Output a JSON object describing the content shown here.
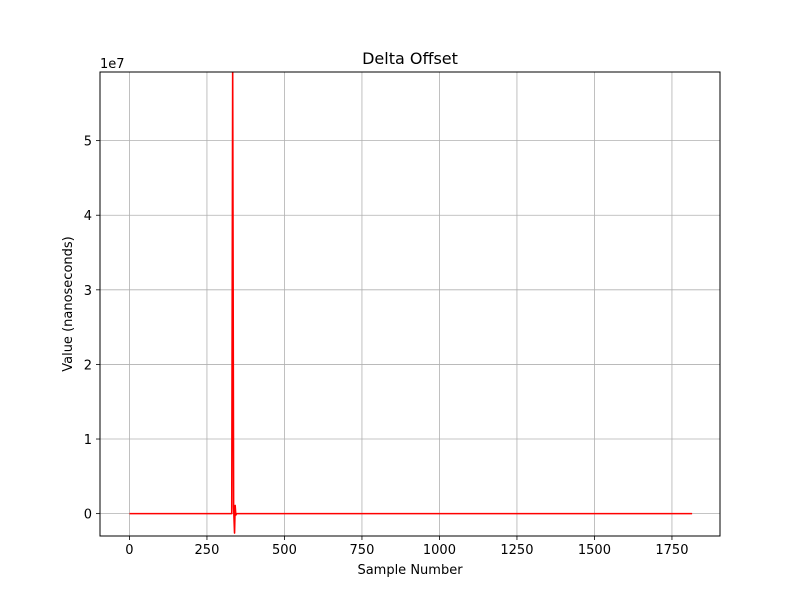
{
  "chart_data": {
    "type": "line",
    "title": "Delta Offset",
    "xlabel": "Sample Number",
    "ylabel": "Value (nanoseconds)",
    "y_offset_label": "1e7",
    "xlim": [
      -95,
      1905
    ],
    "ylim": [
      -3000000,
      59200000
    ],
    "x_ticks": [
      0,
      250,
      500,
      750,
      1000,
      1250,
      1500,
      1750
    ],
    "x_tick_labels": [
      "0",
      "250",
      "500",
      "750",
      "1000",
      "1250",
      "1500",
      "1750"
    ],
    "y_ticks": [
      0,
      10000000,
      20000000,
      30000000,
      40000000,
      50000000
    ],
    "y_tick_labels": [
      "0",
      "1",
      "2",
      "3",
      "4",
      "5"
    ],
    "grid": true,
    "series": [
      {
        "color": "#ff0000",
        "x": [
          0,
          320,
          330,
          333,
          336,
          339,
          341,
          343,
          346,
          352,
          360,
          1815
        ],
        "y": [
          0,
          0,
          0,
          59200000,
          900000,
          -2600000,
          1100000,
          -200000,
          0,
          0,
          0,
          0
        ]
      }
    ]
  }
}
